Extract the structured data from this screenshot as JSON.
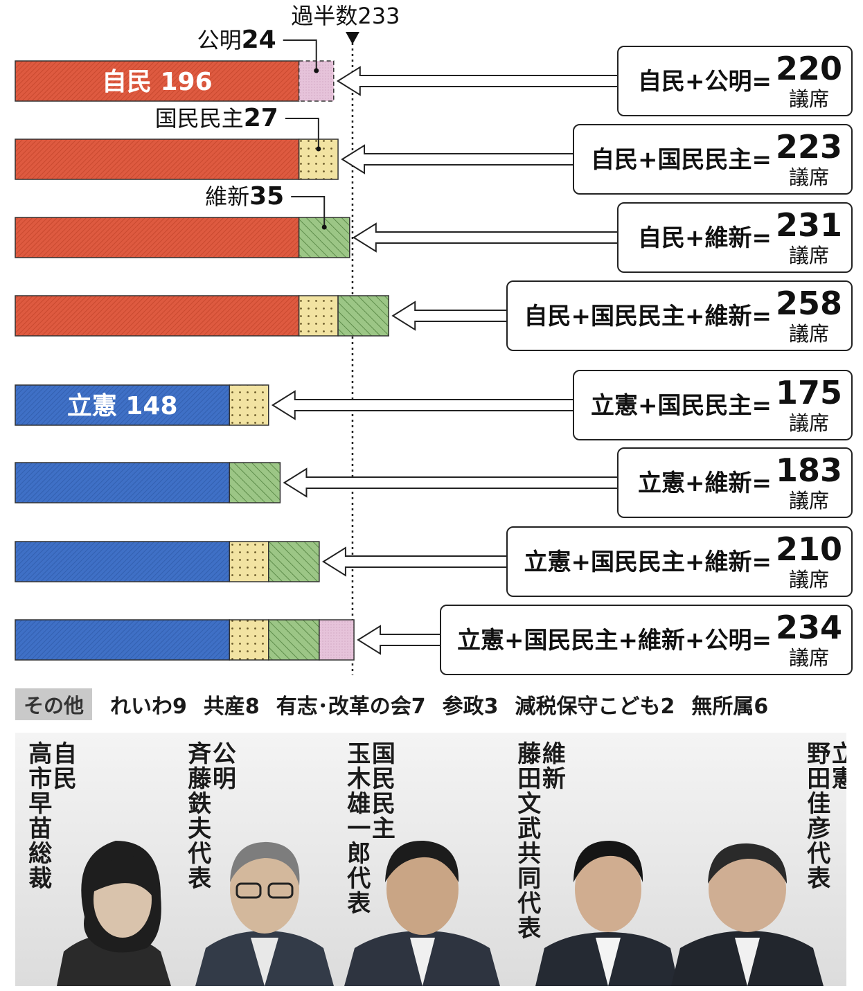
{
  "majority_label": "過半数233",
  "chart_data": {
    "type": "bar",
    "stacked": true,
    "orientation": "horizontal",
    "majority_line": 233,
    "colors": {
      "自民": "#de5a40",
      "立憲": "#3f70c6",
      "公明": "#e6c3da",
      "国民民主": "#f2e3a2",
      "維新": "#9cc686"
    },
    "bars": [
      {
        "segments": [
          {
            "party": "自民",
            "value": 196,
            "label": "自民 196"
          },
          {
            "party": "公明",
            "value": 24,
            "dashed": true
          }
        ],
        "callout": {
          "party": "公明",
          "text": "公明",
          "num": "24"
        },
        "formula": "自民+公明=",
        "total": "220",
        "unit": "議席"
      },
      {
        "segments": [
          {
            "party": "自民",
            "value": 196
          },
          {
            "party": "国民民主",
            "value": 27
          }
        ],
        "callout": {
          "party": "国民民主",
          "text": "国民民主",
          "num": "27"
        },
        "formula": "自民+国民民主=",
        "total": "223",
        "unit": "議席"
      },
      {
        "segments": [
          {
            "party": "自民",
            "value": 196
          },
          {
            "party": "維新",
            "value": 35
          }
        ],
        "callout": {
          "party": "維新",
          "text": "維新",
          "num": "35"
        },
        "formula": "自民+維新=",
        "total": "231",
        "unit": "議席"
      },
      {
        "segments": [
          {
            "party": "自民",
            "value": 196
          },
          {
            "party": "国民民主",
            "value": 27
          },
          {
            "party": "維新",
            "value": 35
          }
        ],
        "formula": "自民+国民民主+維新=",
        "total": "258",
        "unit": "議席"
      },
      {
        "segments": [
          {
            "party": "立憲",
            "value": 148,
            "label": "立憲 148"
          },
          {
            "party": "国民民主",
            "value": 27
          }
        ],
        "formula": "立憲+国民民主=",
        "total": "175",
        "unit": "議席"
      },
      {
        "segments": [
          {
            "party": "立憲",
            "value": 148
          },
          {
            "party": "維新",
            "value": 35
          }
        ],
        "formula": "立憲+維新=",
        "total": "183",
        "unit": "議席"
      },
      {
        "segments": [
          {
            "party": "立憲",
            "value": 148
          },
          {
            "party": "国民民主",
            "value": 27
          },
          {
            "party": "維新",
            "value": 35
          }
        ],
        "formula": "立憲+国民民主+維新=",
        "total": "210",
        "unit": "議席"
      },
      {
        "segments": [
          {
            "party": "立憲",
            "value": 148
          },
          {
            "party": "国民民主",
            "value": 27
          },
          {
            "party": "維新",
            "value": 35
          },
          {
            "party": "公明",
            "value": 24
          }
        ],
        "formula": "立憲+国民民主+維新+公明=",
        "total": "234",
        "unit": "議席"
      }
    ]
  },
  "others": {
    "label": "その他",
    "items": [
      "れいわ9",
      "共産8",
      "有志･改革の会7",
      "参政3",
      "減税保守こども2",
      "無所属6"
    ]
  },
  "leaders": [
    {
      "party": "自民",
      "name": "高市早苗総裁"
    },
    {
      "party": "公明",
      "name": "斉藤鉄夫代表"
    },
    {
      "party": "国民民主",
      "name": "玉木雄一郎代表"
    },
    {
      "party": "維新",
      "name": "藤田文武共同代表"
    },
    {
      "party": "立憲",
      "name": "野田佳彦代表"
    }
  ]
}
